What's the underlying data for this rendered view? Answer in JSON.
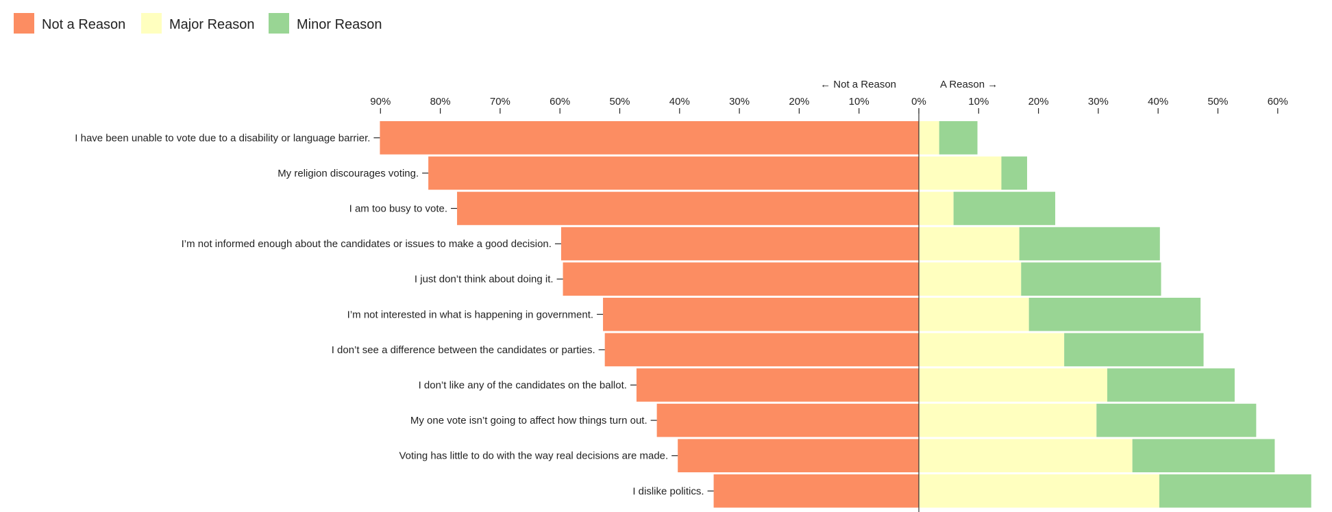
{
  "chart_data": {
    "type": "bar",
    "orientation": "horizontal-diverging-stacked",
    "title": "",
    "xlabel": "",
    "ylabel": "",
    "direction_labels": {
      "left": "← Not a Reason",
      "right": "A Reason →"
    },
    "legend_placement": "top-left",
    "grid": false,
    "xlim": [
      -90,
      66
    ],
    "tick_values": [
      -90,
      -80,
      -70,
      -60,
      -50,
      -40,
      -30,
      -20,
      -10,
      0,
      10,
      20,
      30,
      40,
      50,
      60
    ],
    "tick_labels": [
      "90%",
      "80%",
      "70%",
      "60%",
      "50%",
      "40%",
      "30%",
      "20%",
      "10%",
      "0%",
      "10%",
      "20%",
      "30%",
      "40%",
      "50%",
      "60%"
    ],
    "categories": [
      "I have been unable to vote due to a disability or language barrier.",
      "My religion discourages voting.",
      "I am too busy to vote.",
      "I’m not informed enough about the candidates or issues to make a good decision.",
      "I just don’t think about doing it.",
      "I’m not interested in what is happening in government.",
      "I don’t see a difference between the candidates or parties.",
      "I don’t like any of the candidates on the ballot.",
      "My one vote isn’t going to affect how things turn out.",
      "Voting has little to do with the way real decisions are made.",
      "I dislike politics."
    ],
    "series": [
      {
        "name": "Not a Reason",
        "side": "left",
        "color": "#fc8d62",
        "values": [
          90.1,
          82.0,
          77.2,
          59.8,
          59.5,
          52.8,
          52.5,
          47.2,
          43.8,
          40.3,
          34.3
        ]
      },
      {
        "name": "Major Reason",
        "side": "right",
        "color": "#ffffbf",
        "values": [
          3.4,
          13.8,
          5.8,
          16.8,
          17.1,
          18.4,
          24.3,
          31.5,
          29.7,
          35.7,
          40.2
        ]
      },
      {
        "name": "Minor Reason",
        "side": "right",
        "color": "#99d594",
        "values": [
          6.4,
          4.3,
          17.0,
          23.5,
          23.4,
          28.7,
          23.3,
          21.3,
          26.7,
          23.8,
          25.4
        ]
      }
    ]
  }
}
